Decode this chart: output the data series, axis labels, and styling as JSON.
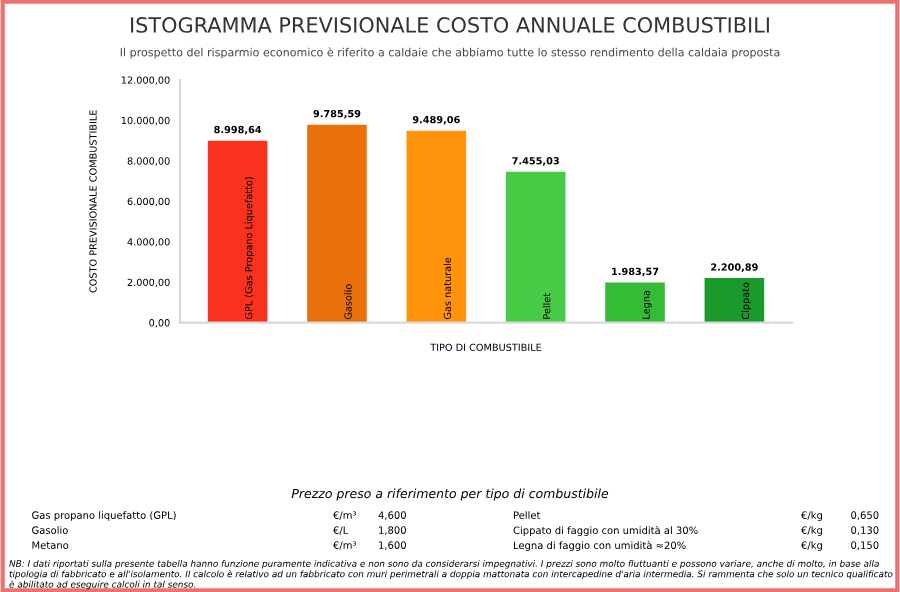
{
  "chart_data": {
    "type": "bar",
    "title": "ISTOGRAMMA PREVISIONALE COSTO ANNUALE COMBUSTIBILI",
    "subtitle": "Il prospetto del risparmio economico è riferito a caldaie che abbiamo tutte lo stesso rendimento della caldaia proposta",
    "xlabel": "TIPO DI COMBUSTIBILE",
    "ylabel": "COSTO PREVISIONALE COMBUSTIBILE",
    "categories": [
      "GPL (Gas Propano Liquefatto)",
      "Gasolio",
      "Gas naturale",
      "Pellet",
      "Legna",
      "Cippato"
    ],
    "values": [
      8998.64,
      9785.59,
      9489.06,
      7455.03,
      1983.57,
      2200.89
    ],
    "value_labels": [
      "8.998,64",
      "9.785,59",
      "9.489,06",
      "7.455,03",
      "1.983,57",
      "2.200,89"
    ],
    "colors": [
      "#f8321e",
      "#e8700a",
      "#ff940c",
      "#48cc48",
      "#36bb36",
      "#1a9a2a"
    ],
    "ylim": [
      0,
      12000
    ],
    "yticks": [
      {
        "value": 0,
        "label": "0,00"
      },
      {
        "value": 2000,
        "label": "2.000,00"
      },
      {
        "value": 4000,
        "label": "4.000,00"
      },
      {
        "value": 6000,
        "label": "6.000,00"
      },
      {
        "value": 8000,
        "label": "8.000,00"
      },
      {
        "value": 10000,
        "label": "10.000,00"
      },
      {
        "value": 12000,
        "label": "12.000,00"
      }
    ],
    "grid": false,
    "legend": false,
    "annotations": [
      "Prezzo preso a riferimento per tipo di combustibile",
      "Gas propano liquefatto (GPL)",
      "€/m³",
      "4,600",
      "Gasolio",
      "€/L",
      "1,800",
      "Metano",
      "€/m³",
      "1,600",
      "Pellet",
      "€/kg",
      "0,650",
      "Cippato di faggio con umidità al 30%",
      "€/kg",
      "0,130",
      "Legna di faggio con umidità ≈20%",
      "€/kg",
      "0,150",
      "NB: I dati riportati sulla presente tabella hanno funzione puramente indicativa e non sono da considerarsi impegnativi. I prezzi sono molto fluttuanti e possono variare, anche di molto, in base alla tipologia di fabbricato e all'isolamento. Il calcolo è relativo ad un fabbricato con muri perimetrali a doppia mattonata con intercapedine d'aria intermedia. Si rammenta che solo un tecnico qualificato è abilitato ad eseguire calcoli in tal senso."
    ]
  }
}
